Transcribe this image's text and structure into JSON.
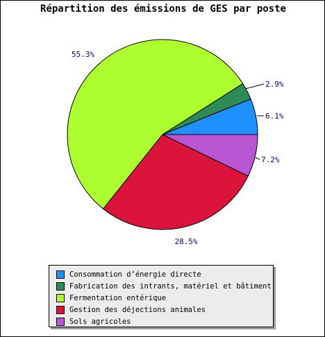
{
  "chart_data": {
    "type": "pie",
    "title": "Répartition des émissions de GES par poste",
    "slices": [
      {
        "name": "Consommation d’énergie directe",
        "value": 6.1,
        "label": "6.1%",
        "color": "#1e90ff"
      },
      {
        "name": "Fabrication des intrants, matériel et bâtiment",
        "value": 2.9,
        "label": "2.9%",
        "color": "#2e8b57"
      },
      {
        "name": "Fermentation entérique",
        "value": 55.3,
        "label": "55.3%",
        "color": "#adff2f"
      },
      {
        "name": "Gestion des déjections animales",
        "value": 28.5,
        "label": "28.5%",
        "color": "#dc143c"
      },
      {
        "name": "Sols agricoles",
        "value": 7.2,
        "label": "7.2%",
        "color": "#ba55d3"
      }
    ],
    "label_color": "#000080",
    "legend_position": "bottom"
  }
}
